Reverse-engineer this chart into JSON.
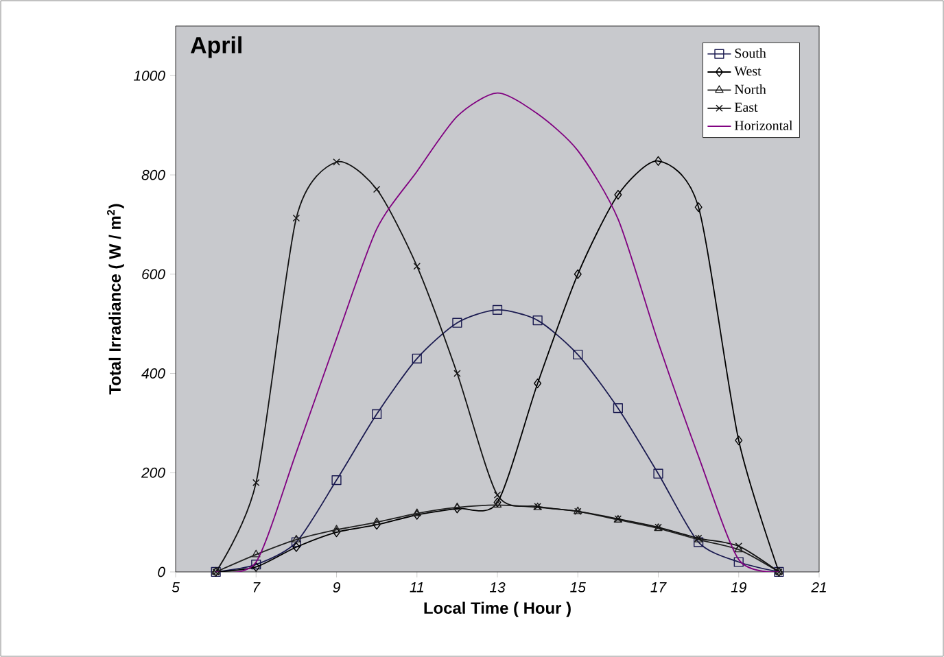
{
  "chart_data": {
    "type": "line",
    "title": "April",
    "xlabel": "Local Time ( Hour )",
    "ylabel": "Total Irradiance ( W / m$^{2}$)",
    "x": [
      6,
      7,
      8,
      9,
      10,
      11,
      12,
      13,
      14,
      15,
      16,
      17,
      18,
      19,
      20
    ],
    "series": [
      {
        "name": "South",
        "color": "#1a1a50",
        "marker": "square",
        "values": [
          0,
          15,
          60,
          185,
          318,
          430,
          502,
          528,
          507,
          438,
          330,
          198,
          60,
          20,
          0
        ]
      },
      {
        "name": "West",
        "color": "#000000",
        "marker": "diamond",
        "values": [
          0,
          10,
          50,
          80,
          95,
          115,
          128,
          140,
          380,
          600,
          760,
          828,
          735,
          265,
          0
        ]
      },
      {
        "name": "North",
        "color": "#222222",
        "marker": "triangle",
        "values": [
          0,
          35,
          65,
          85,
          100,
          118,
          130,
          135,
          130,
          122,
          105,
          88,
          65,
          45,
          0
        ]
      },
      {
        "name": "East",
        "color": "#111111",
        "marker": "cross",
        "values": [
          0,
          180,
          713,
          826,
          771,
          616,
          400,
          155,
          132,
          122,
          107,
          90,
          68,
          52,
          0
        ]
      },
      {
        "name": "Horizontal",
        "color": "#800080",
        "marker": "none",
        "values": [
          0,
          20,
          241,
          470,
          691,
          807,
          918,
          965,
          923,
          849,
          711,
          462,
          233,
          25,
          0
        ]
      }
    ],
    "xlim": [
      5,
      21
    ],
    "xticks": [
      5,
      7,
      9,
      11,
      13,
      15,
      17,
      19,
      21
    ],
    "ylim": [
      0,
      1100
    ],
    "yticks": [
      0,
      200,
      400,
      600,
      800,
      1000
    ],
    "grid": false,
    "legend": "top right"
  }
}
